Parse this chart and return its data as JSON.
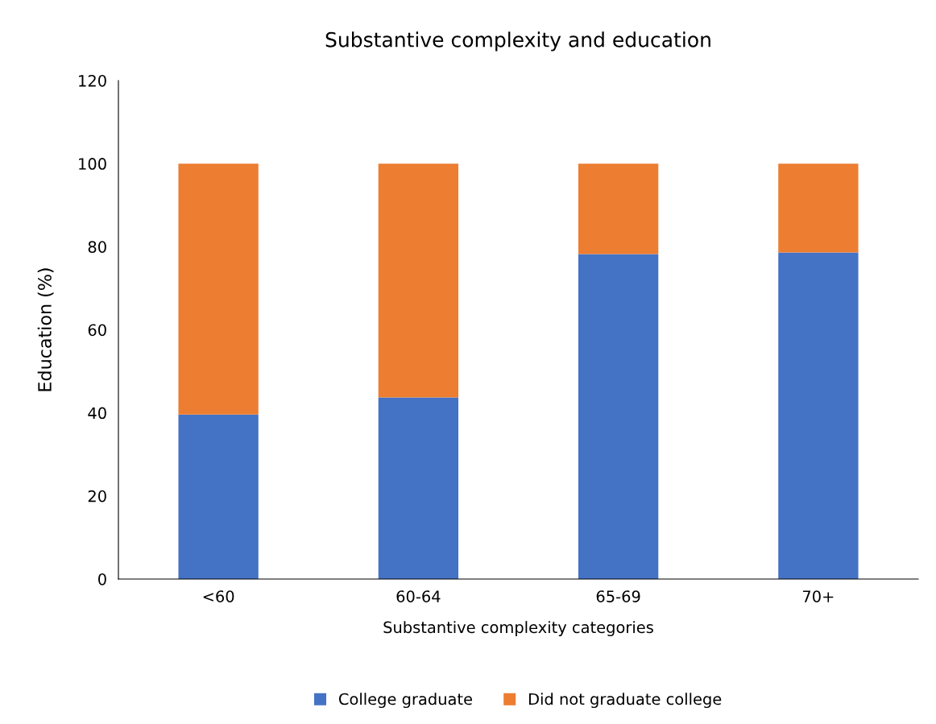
{
  "chart_data": {
    "type": "bar",
    "title": "Substantive complexity and education",
    "xlabel": "Substantive complexity categories",
    "ylabel": "Education (%)",
    "categories": [
      "<60",
      "60-64",
      "65-69",
      "70+"
    ],
    "stacked": true,
    "series": [
      {
        "name": "College graduate",
        "color": "#4472c4",
        "values": [
          39.6,
          43.7,
          78.2,
          78.6
        ]
      },
      {
        "name": "Did not graduate college",
        "color": "#ed7d31",
        "values": [
          60.4,
          56.3,
          21.8,
          21.4
        ]
      }
    ],
    "ylim": [
      0,
      120
    ],
    "yticks": [
      0,
      20,
      40,
      60,
      80,
      100,
      120
    ],
    "grid": false,
    "legend": "bottom"
  }
}
